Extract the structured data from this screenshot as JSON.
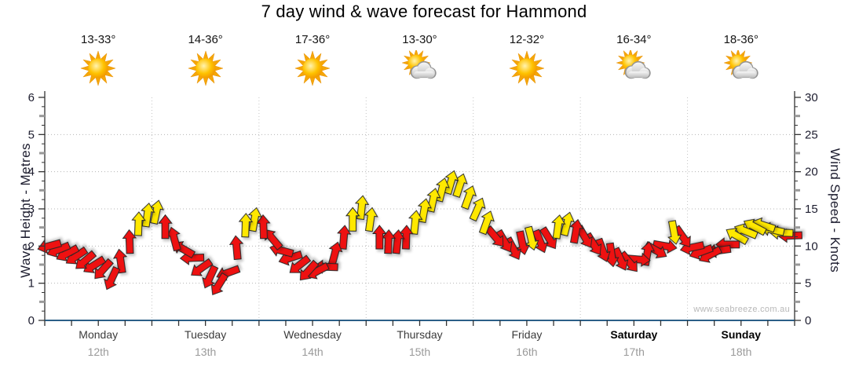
{
  "title": "7 day wind & wave forecast for Hammond",
  "watermark": "www.seabreeze.com.au",
  "axes": {
    "left": {
      "label": "Wave Height - Metres",
      "range": [
        0,
        6
      ],
      "ticks": [
        0,
        1,
        2,
        3,
        4,
        5,
        6
      ]
    },
    "right": {
      "label": "Wind Speed - Knots",
      "range": [
        0,
        30
      ],
      "ticks": [
        0,
        5,
        10,
        15,
        20,
        25,
        30
      ]
    }
  },
  "days": [
    {
      "name": "Monday",
      "date": "12th",
      "temp": "13-33°",
      "icon": "sunny",
      "weekend": false
    },
    {
      "name": "Tuesday",
      "date": "13th",
      "temp": "14-36°",
      "icon": "sunny",
      "weekend": false
    },
    {
      "name": "Wednesday",
      "date": "14th",
      "temp": "17-36°",
      "icon": "sunny",
      "weekend": false
    },
    {
      "name": "Thursday",
      "date": "15th",
      "temp": "13-30°",
      "icon": "partly-cloudy",
      "weekend": false
    },
    {
      "name": "Friday",
      "date": "16th",
      "temp": "12-32°",
      "icon": "sunny",
      "weekend": false
    },
    {
      "name": "Saturday",
      "date": "17th",
      "temp": "16-34°",
      "icon": "partly-cloudy",
      "weekend": true
    },
    {
      "name": "Sunday",
      "date": "18th",
      "temp": "18-36°",
      "icon": "partly-cloudy",
      "weekend": true
    }
  ],
  "colors": {
    "arrow_red": "#ee1111",
    "arrow_yellow": "#ffe800",
    "arrow_outline": "#262626",
    "baseline": "#2b5f87",
    "axis_line": "#333333",
    "grid_h": "#b4b4b4",
    "grid_v": "#c4c4c4",
    "half_tick": "#999999",
    "sun_ray": "#f5a609",
    "sun_core": "#ffc300",
    "cloud": "#dcdcdc"
  },
  "chart_data": {
    "type": "wind-arrow-series",
    "title": "7 day wind & wave forecast for Hammond",
    "x_categories": [
      "Monday 12th",
      "Tuesday 13th",
      "Wednesday 14th",
      "Thursday 15th",
      "Friday 16th",
      "Saturday 17th",
      "Sunday 18th"
    ],
    "y_left_label": "Wave Height - Metres",
    "y_left_range": [
      0,
      6
    ],
    "y_right_label": "Wind Speed - Knots",
    "y_right_range": [
      0,
      30
    ],
    "grid": "dotted, horizontal every 5 knots, vertical at day boundaries",
    "legend": "arrow colour = wind strength (red ≲12kn, yellow ≳12kn); arrow angle = wind direction (0=up)",
    "arrows_format": [
      "day_index",
      "hour",
      "knots",
      "dir_deg",
      "color"
    ],
    "arrows": [
      [
        0,
        0,
        10.0,
        255,
        "red"
      ],
      [
        0,
        2,
        9.5,
        248,
        "red"
      ],
      [
        0,
        4,
        9.0,
        242,
        "red"
      ],
      [
        0,
        6,
        8.6,
        236,
        "red"
      ],
      [
        0,
        8,
        8.0,
        230,
        "red"
      ],
      [
        0,
        10,
        7.4,
        238,
        "red"
      ],
      [
        0,
        12,
        6.8,
        222,
        "red"
      ],
      [
        0,
        14,
        5.6,
        205,
        "red"
      ],
      [
        0,
        16,
        8.0,
        352,
        "red"
      ],
      [
        0,
        18,
        10.6,
        358,
        "red"
      ],
      [
        0,
        20,
        13.0,
        2,
        "yellow"
      ],
      [
        0,
        22,
        14.2,
        8,
        "yellow"
      ],
      [
        1,
        0,
        14.6,
        12,
        "yellow"
      ],
      [
        1,
        2,
        12.6,
        0,
        "red"
      ],
      [
        1,
        4,
        11.0,
        345,
        "red"
      ],
      [
        1,
        6,
        9.6,
        300,
        "red"
      ],
      [
        1,
        8,
        8.4,
        268,
        "red"
      ],
      [
        1,
        10,
        7.0,
        235,
        "red"
      ],
      [
        1,
        12,
        5.8,
        205,
        "red"
      ],
      [
        1,
        14,
        4.8,
        212,
        "red"
      ],
      [
        1,
        16,
        6.4,
        250,
        "red"
      ],
      [
        1,
        18,
        9.8,
        355,
        "red"
      ],
      [
        1,
        20,
        12.8,
        2,
        "yellow"
      ],
      [
        1,
        22,
        13.6,
        10,
        "yellow"
      ],
      [
        2,
        0,
        12.6,
        358,
        "red"
      ],
      [
        2,
        2,
        11.0,
        320,
        "red"
      ],
      [
        2,
        4,
        9.4,
        285,
        "red"
      ],
      [
        2,
        6,
        8.4,
        252,
        "red"
      ],
      [
        2,
        8,
        7.4,
        232,
        "red"
      ],
      [
        2,
        10,
        6.6,
        222,
        "red"
      ],
      [
        2,
        12,
        6.6,
        242,
        "red"
      ],
      [
        2,
        14,
        7.2,
        272,
        "red"
      ],
      [
        2,
        16,
        9.0,
        15,
        "red"
      ],
      [
        2,
        18,
        11.2,
        5,
        "red"
      ],
      [
        2,
        20,
        13.6,
        0,
        "yellow"
      ],
      [
        2,
        22,
        15.2,
        6,
        "yellow"
      ],
      [
        3,
        0,
        13.6,
        8,
        "yellow"
      ],
      [
        3,
        2,
        11.2,
        0,
        "red"
      ],
      [
        3,
        4,
        10.6,
        2,
        "red"
      ],
      [
        3,
        6,
        10.6,
        6,
        "red"
      ],
      [
        3,
        8,
        11.2,
        2,
        "red"
      ],
      [
        3,
        10,
        13.2,
        6,
        "yellow"
      ],
      [
        3,
        12,
        14.8,
        10,
        "yellow"
      ],
      [
        3,
        14,
        16.2,
        12,
        "yellow"
      ],
      [
        3,
        16,
        17.6,
        14,
        "yellow"
      ],
      [
        3,
        18,
        18.6,
        16,
        "yellow"
      ],
      [
        3,
        20,
        18.2,
        18,
        "yellow"
      ],
      [
        3,
        22,
        16.6,
        20,
        "yellow"
      ],
      [
        4,
        0,
        15.0,
        24,
        "yellow"
      ],
      [
        4,
        2,
        13.2,
        20,
        "yellow"
      ],
      [
        4,
        4,
        11.2,
        140,
        "red"
      ],
      [
        4,
        6,
        10.6,
        150,
        "red"
      ],
      [
        4,
        8,
        9.6,
        152,
        "red"
      ],
      [
        4,
        10,
        10.4,
        168,
        "red"
      ],
      [
        4,
        12,
        11.0,
        166,
        "yellow"
      ],
      [
        4,
        14,
        10.6,
        158,
        "red"
      ],
      [
        4,
        16,
        11.0,
        148,
        "red"
      ],
      [
        4,
        18,
        12.6,
        8,
        "yellow"
      ],
      [
        4,
        20,
        13.0,
        14,
        "yellow"
      ],
      [
        4,
        22,
        12.0,
        10,
        "red"
      ],
      [
        5,
        0,
        11.2,
        150,
        "red"
      ],
      [
        5,
        2,
        10.2,
        148,
        "red"
      ],
      [
        5,
        4,
        9.4,
        160,
        "red"
      ],
      [
        5,
        6,
        8.8,
        172,
        "red"
      ],
      [
        5,
        8,
        8.2,
        155,
        "red"
      ],
      [
        5,
        10,
        7.8,
        140,
        "red"
      ],
      [
        5,
        12,
        8.2,
        95,
        "red"
      ],
      [
        5,
        14,
        9.0,
        10,
        "red"
      ],
      [
        5,
        16,
        9.4,
        120,
        "red"
      ],
      [
        5,
        18,
        10.0,
        100,
        "red"
      ],
      [
        5,
        20,
        11.8,
        170,
        "yellow"
      ],
      [
        5,
        22,
        11.2,
        145,
        "red"
      ],
      [
        6,
        0,
        9.8,
        258,
        "red"
      ],
      [
        6,
        2,
        9.2,
        250,
        "red"
      ],
      [
        6,
        4,
        8.8,
        242,
        "red"
      ],
      [
        6,
        6,
        9.4,
        262,
        "red"
      ],
      [
        6,
        8,
        10.2,
        270,
        "red"
      ],
      [
        6,
        10,
        11.4,
        300,
        "yellow"
      ],
      [
        6,
        12,
        12.0,
        292,
        "yellow"
      ],
      [
        6,
        14,
        12.6,
        298,
        "yellow"
      ],
      [
        6,
        16,
        12.8,
        288,
        "yellow"
      ],
      [
        6,
        18,
        12.2,
        282,
        "yellow"
      ],
      [
        6,
        20,
        11.8,
        272,
        "yellow"
      ],
      [
        6,
        22,
        11.4,
        268,
        "red"
      ]
    ]
  }
}
